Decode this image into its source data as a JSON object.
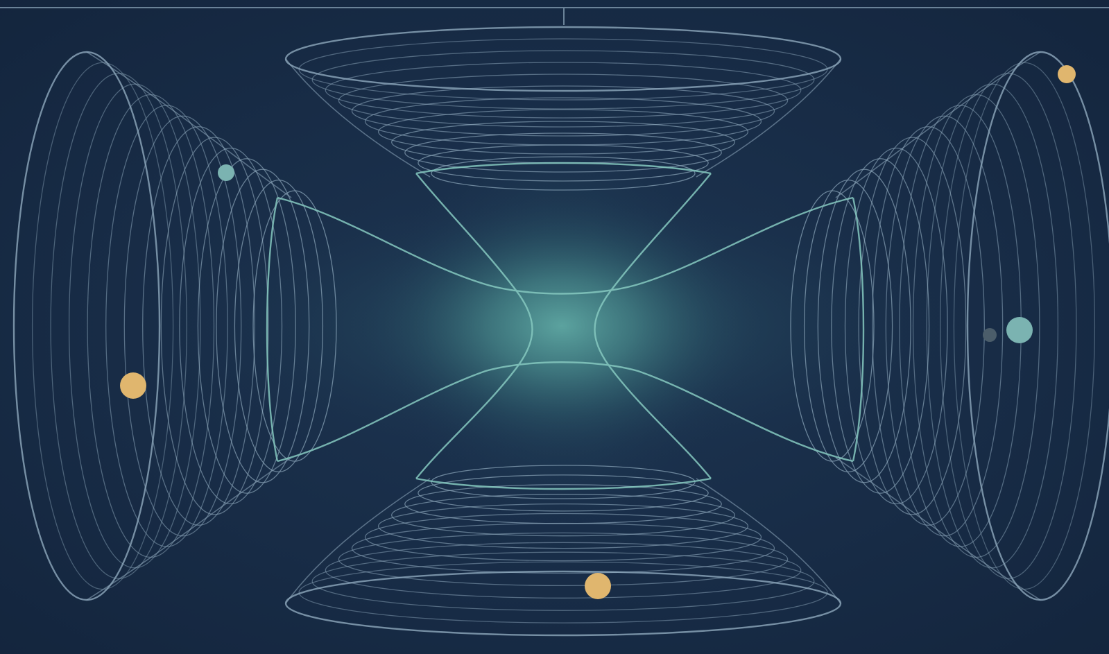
{
  "colors": {
    "background": "#172a45",
    "background_edge": "#13243c",
    "line": "#8fa9bd",
    "line_bright": "#86c9c0",
    "glow": "#5aa6a0",
    "dot_gold": "#e0b66e",
    "dot_teal": "#7bb3b1",
    "dot_dim": "#4b5d6a"
  },
  "dots": [
    {
      "kind": "gold"
    },
    {
      "kind": "gold"
    },
    {
      "kind": "gold"
    },
    {
      "kind": "teal"
    },
    {
      "kind": "teal"
    },
    {
      "kind": "dim"
    }
  ]
}
